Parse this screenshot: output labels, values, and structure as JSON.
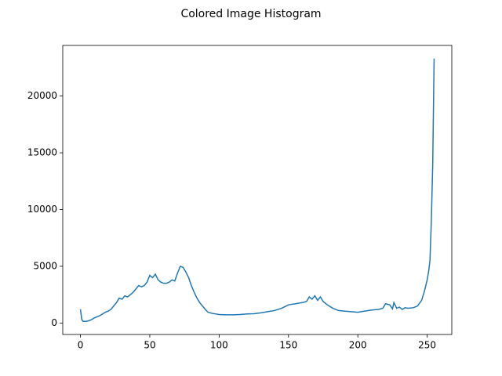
{
  "chart_data": {
    "type": "line",
    "title": "Colored Image Histogram",
    "x": [
      0,
      1,
      2,
      4,
      6,
      8,
      10,
      12,
      14,
      16,
      18,
      20,
      22,
      24,
      26,
      28,
      30,
      32,
      34,
      36,
      38,
      40,
      42,
      44,
      46,
      48,
      50,
      52,
      54,
      56,
      58,
      60,
      62,
      64,
      66,
      68,
      70,
      72,
      74,
      76,
      78,
      80,
      82,
      84,
      86,
      88,
      90,
      92,
      95,
      100,
      105,
      110,
      115,
      120,
      125,
      130,
      135,
      140,
      145,
      150,
      155,
      160,
      163,
      165,
      167,
      169,
      171,
      173,
      175,
      178,
      182,
      186,
      190,
      195,
      200,
      205,
      210,
      215,
      218,
      220,
      223,
      225,
      226,
      228,
      230,
      232,
      234,
      236,
      240,
      243,
      246,
      248,
      250,
      251,
      252,
      253,
      254,
      255
    ],
    "series": [
      {
        "color": "#1f77b4",
        "values": [
          1200,
          300,
          150,
          150,
          200,
          300,
          450,
          550,
          650,
          800,
          950,
          1050,
          1200,
          1500,
          1800,
          2200,
          2100,
          2400,
          2300,
          2500,
          2700,
          3000,
          3300,
          3200,
          3300,
          3600,
          4200,
          4000,
          4300,
          3800,
          3600,
          3500,
          3500,
          3600,
          3800,
          3700,
          4400,
          5000,
          4900,
          4500,
          4000,
          3300,
          2700,
          2200,
          1800,
          1500,
          1200,
          950,
          850,
          750,
          720,
          720,
          750,
          800,
          820,
          900,
          1000,
          1100,
          1300,
          1600,
          1700,
          1800,
          1900,
          2300,
          2100,
          2400,
          2000,
          2300,
          1900,
          1600,
          1300,
          1100,
          1050,
          1000,
          950,
          1050,
          1150,
          1200,
          1300,
          1700,
          1600,
          1250,
          1800,
          1300,
          1400,
          1200,
          1350,
          1300,
          1350,
          1500,
          2000,
          2800,
          3800,
          4500,
          5500,
          9000,
          14000,
          23300
        ]
      }
    ],
    "xlim": [
      -12.75,
      267.75
    ],
    "ylim": [
      -1010,
      24460
    ],
    "xticks": [
      0,
      50,
      100,
      150,
      200,
      250
    ],
    "yticks": [
      0,
      5000,
      10000,
      15000,
      20000
    ]
  }
}
